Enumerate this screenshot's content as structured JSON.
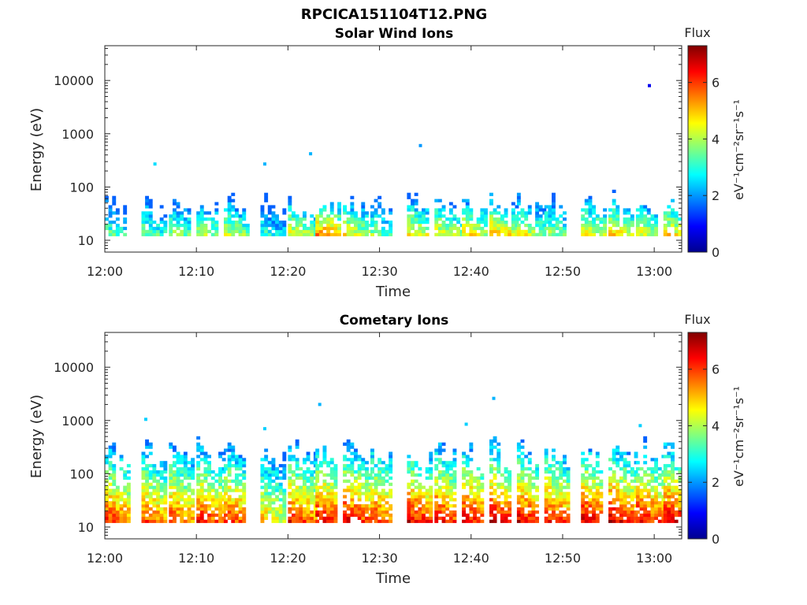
{
  "figure_title": "RPCICA151104T12.PNG",
  "chart_data": [
    {
      "type": "heatmap",
      "title": "Solar Wind Ions",
      "xlabel": "Time",
      "ylabel": "Energy (eV)",
      "y_scale": "log",
      "ylim": [
        6,
        45000
      ],
      "xlim": [
        "12:00",
        "13:03"
      ],
      "x_ticks": [
        "12:00",
        "12:10",
        "12:20",
        "12:30",
        "12:40",
        "12:50",
        "13:00"
      ],
      "y_ticks": [
        "10",
        "100",
        "1000",
        "10000"
      ],
      "colorbar": {
        "title": "Flux",
        "label": "eV⁻¹cm⁻²sr⁻¹s⁻¹",
        "range": [
          0,
          7.3
        ],
        "ticks": [
          "0",
          "2",
          "4",
          "6"
        ],
        "colormap": "jet"
      },
      "grid": false,
      "bursts_time": [
        "12:00",
        "12:04",
        "12:07",
        "12:10",
        "12:13",
        "12:17",
        "12:20",
        "12:23",
        "12:26",
        "12:29",
        "12:33",
        "12:36",
        "12:39",
        "12:42",
        "12:45",
        "12:48",
        "12:52",
        "12:55",
        "12:58",
        "13:01"
      ],
      "bursts_peak_flux": [
        3.5,
        3.7,
        4.0,
        4.2,
        4.3,
        3.2,
        4.6,
        5.6,
        4.6,
        3.8,
        4.8,
        4.6,
        4.8,
        5.2,
        4.6,
        4.0,
        4.8,
        5.0,
        4.6,
        5.0
      ],
      "energy_range_eV": [
        12,
        80
      ],
      "sparse_points": [
        {
          "time": "12:22",
          "energy": 420,
          "flux": 2.2
        },
        {
          "time": "12:34",
          "energy": 600,
          "flux": 2.0
        },
        {
          "time": "12:59",
          "energy": 8000,
          "flux": 0.8
        },
        {
          "time": "12:17",
          "energy": 270,
          "flux": 2.2
        },
        {
          "time": "12:05",
          "energy": 270,
          "flux": 2.5
        }
      ]
    },
    {
      "type": "heatmap",
      "title": "Cometary Ions",
      "xlabel": "Time",
      "ylabel": "Energy (eV)",
      "y_scale": "log",
      "ylim": [
        6,
        45000
      ],
      "xlim": [
        "12:00",
        "13:03"
      ],
      "x_ticks": [
        "12:00",
        "12:10",
        "12:20",
        "12:30",
        "12:40",
        "12:50",
        "13:00"
      ],
      "y_ticks": [
        "10",
        "100",
        "1000",
        "10000"
      ],
      "colorbar": {
        "title": "Flux",
        "label": "eV⁻¹cm⁻²sr⁻¹s⁻¹",
        "range": [
          0,
          7.3
        ],
        "ticks": [
          "0",
          "2",
          "4",
          "6"
        ],
        "colormap": "jet"
      },
      "grid": false,
      "bursts_time": [
        "12:00",
        "12:04",
        "12:07",
        "12:10",
        "12:13",
        "12:17",
        "12:20",
        "12:23",
        "12:26",
        "12:29",
        "12:33",
        "12:36",
        "12:39",
        "12:42",
        "12:45",
        "12:48",
        "12:52",
        "12:55",
        "12:58",
        "13:01"
      ],
      "bursts_peak_flux": [
        6.2,
        6.0,
        6.0,
        6.3,
        6.2,
        5.0,
        6.3,
        6.6,
        6.6,
        6.2,
        6.6,
        6.5,
        6.6,
        6.8,
        6.6,
        6.4,
        6.7,
        6.8,
        6.6,
        6.8
      ],
      "energy_range_eV": [
        12,
        450
      ],
      "sparse_points": [
        {
          "time": "12:23",
          "energy": 2000,
          "flux": 2.2
        },
        {
          "time": "12:42",
          "energy": 2600,
          "flux": 2.2
        },
        {
          "time": "12:04",
          "energy": 1050,
          "flux": 2.4
        },
        {
          "time": "12:17",
          "energy": 700,
          "flux": 2.4
        },
        {
          "time": "12:39",
          "energy": 850,
          "flux": 2.4
        },
        {
          "time": "12:58",
          "energy": 800,
          "flux": 2.4
        }
      ]
    }
  ]
}
